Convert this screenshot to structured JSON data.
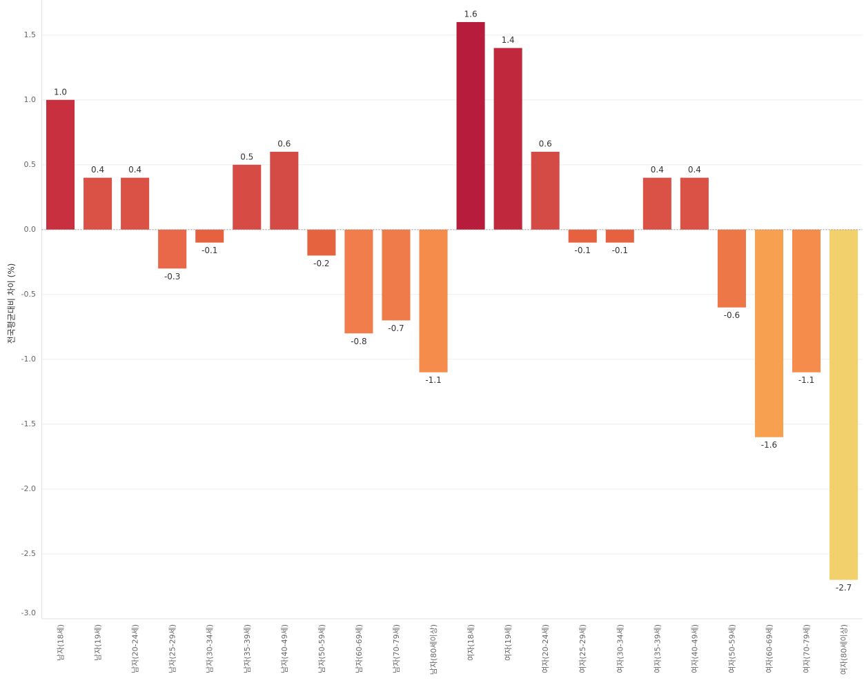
{
  "chart_data": {
    "type": "bar",
    "y_label": "전국평균대비 차이 (%)",
    "categories": [
      "남자(18세)",
      "남자(19세)",
      "남자(20-24세)",
      "남자(25-29세)",
      "남자(30-34세)",
      "남자(35-39세)",
      "남자(40-49세)",
      "남자(50-59세)",
      "남자(60-69세)",
      "남자(70-79세)",
      "남자(80세이상)",
      "여자(18세)",
      "여자(19세)",
      "여자(20-24세)",
      "여자(25-29세)",
      "여자(30-34세)",
      "여자(35-39세)",
      "여자(40-49세)",
      "여자(50-59세)",
      "여자(60-69세)",
      "여자(70-79세)",
      "여자(80세이상)"
    ],
    "values": [
      1.0,
      0.4,
      0.4,
      -0.3,
      -0.1,
      0.5,
      0.6,
      -0.2,
      -0.8,
      -0.7,
      -1.1,
      1.6,
      1.4,
      0.6,
      -0.1,
      -0.1,
      0.4,
      0.4,
      -0.6,
      -1.6,
      -1.1,
      -2.7
    ],
    "value_labels": [
      "1.0",
      "0.4",
      "0.4",
      "-0.3",
      "-0.1",
      "0.5",
      "0.6",
      "-0.2",
      "-0.8",
      "-0.7",
      "-1.1",
      "1.6",
      "1.4",
      "0.6",
      "-0.1",
      "-0.1",
      "0.4",
      "0.4",
      "-0.6",
      "-1.6",
      "-1.1",
      "-2.7"
    ],
    "colors": [
      "#c9303f",
      "#d95245",
      "#d95245",
      "#e9684a",
      "#e5613f",
      "#d64c44",
      "#d44a44",
      "#e6633f",
      "#f07d4b",
      "#ef7a4a",
      "#f58c4c",
      "#b71c3c",
      "#c0283e",
      "#d44a44",
      "#e5613f",
      "#e5613f",
      "#d95245",
      "#d95245",
      "#ee7748",
      "#f7a050",
      "#f58c4c",
      "#f2d06b"
    ],
    "ylim": [
      -3.0,
      1.77
    ],
    "yticks": [
      {
        "value": -3.0,
        "label": "-3.0"
      },
      -2.5,
      {
        "value": -2.0,
        "label": "-2.0"
      },
      -1.5,
      {
        "value": -1.0,
        "label": "-1.0"
      },
      -0.5,
      {
        "value": 0.0,
        "label": "0.0"
      },
      0.5,
      {
        "value": 1.0,
        "label": "1.0"
      },
      1.5
    ],
    "grid": true
  }
}
